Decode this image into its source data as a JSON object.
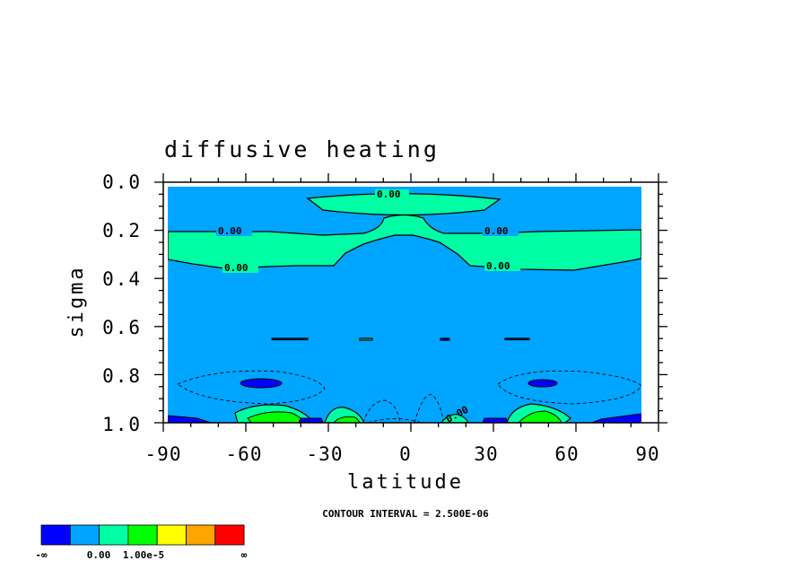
{
  "chart_data": {
    "type": "contour",
    "title": "diffusive heating",
    "xlabel": "latitude",
    "ylabel": "sigma",
    "x_ticks": [
      "-90",
      "-60",
      "-30",
      "0",
      "30",
      "60",
      "90"
    ],
    "y_ticks": [
      "0.0",
      "0.2",
      "0.4",
      "0.6",
      "0.8",
      "1.0"
    ],
    "xlim": [
      -90,
      90
    ],
    "ylim": [
      0.0,
      1.0
    ],
    "contour_interval_label": "CONTOUR INTERVAL = 2.500E-06",
    "contour_labels": [
      "0.00",
      "0.00",
      "0.00",
      "0.00",
      "0.00",
      "0.00",
      "0.00"
    ],
    "colorbar": {
      "colors": [
        "#0000ff",
        "#00a5ff",
        "#00ffa5",
        "#00ff00",
        "#ffff00",
        "#ffa500",
        "#ff0000"
      ],
      "labels": [
        "-∞",
        "0.00",
        "1.00e-5",
        "∞"
      ]
    }
  }
}
